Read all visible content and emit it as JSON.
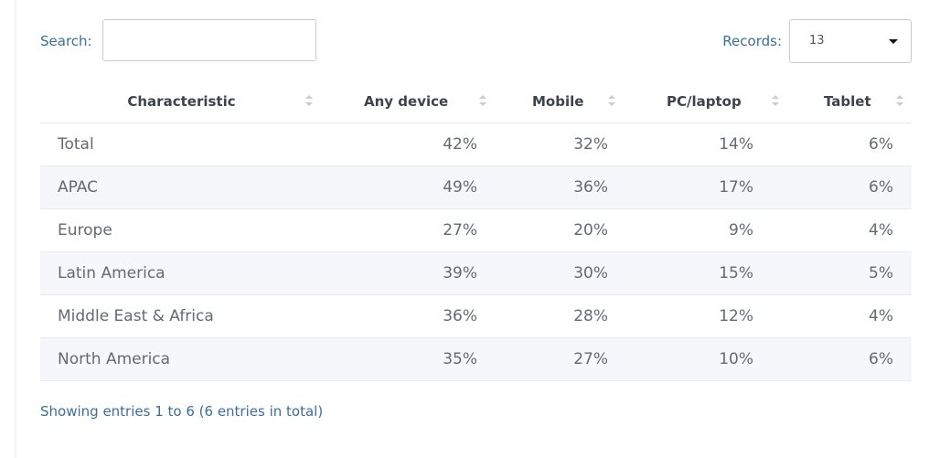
{
  "search": {
    "label": "Search:",
    "value": "",
    "placeholder": ""
  },
  "records": {
    "label": "Records:",
    "selected": "13"
  },
  "table": {
    "columns": [
      "Characteristic",
      "Any device",
      "Mobile",
      "PC/laptop",
      "Tablet"
    ],
    "rows": [
      [
        "Total",
        "42%",
        "32%",
        "14%",
        "6%"
      ],
      [
        "APAC",
        "49%",
        "36%",
        "17%",
        "6%"
      ],
      [
        "Europe",
        "27%",
        "20%",
        "9%",
        "4%"
      ],
      [
        "Latin America",
        "39%",
        "30%",
        "15%",
        "5%"
      ],
      [
        "Middle East & Africa",
        "36%",
        "28%",
        "12%",
        "4%"
      ],
      [
        "North America",
        "35%",
        "27%",
        "10%",
        "6%"
      ]
    ]
  },
  "footer": {
    "info": "Showing entries 1 to 6 (6 entries in total)"
  }
}
